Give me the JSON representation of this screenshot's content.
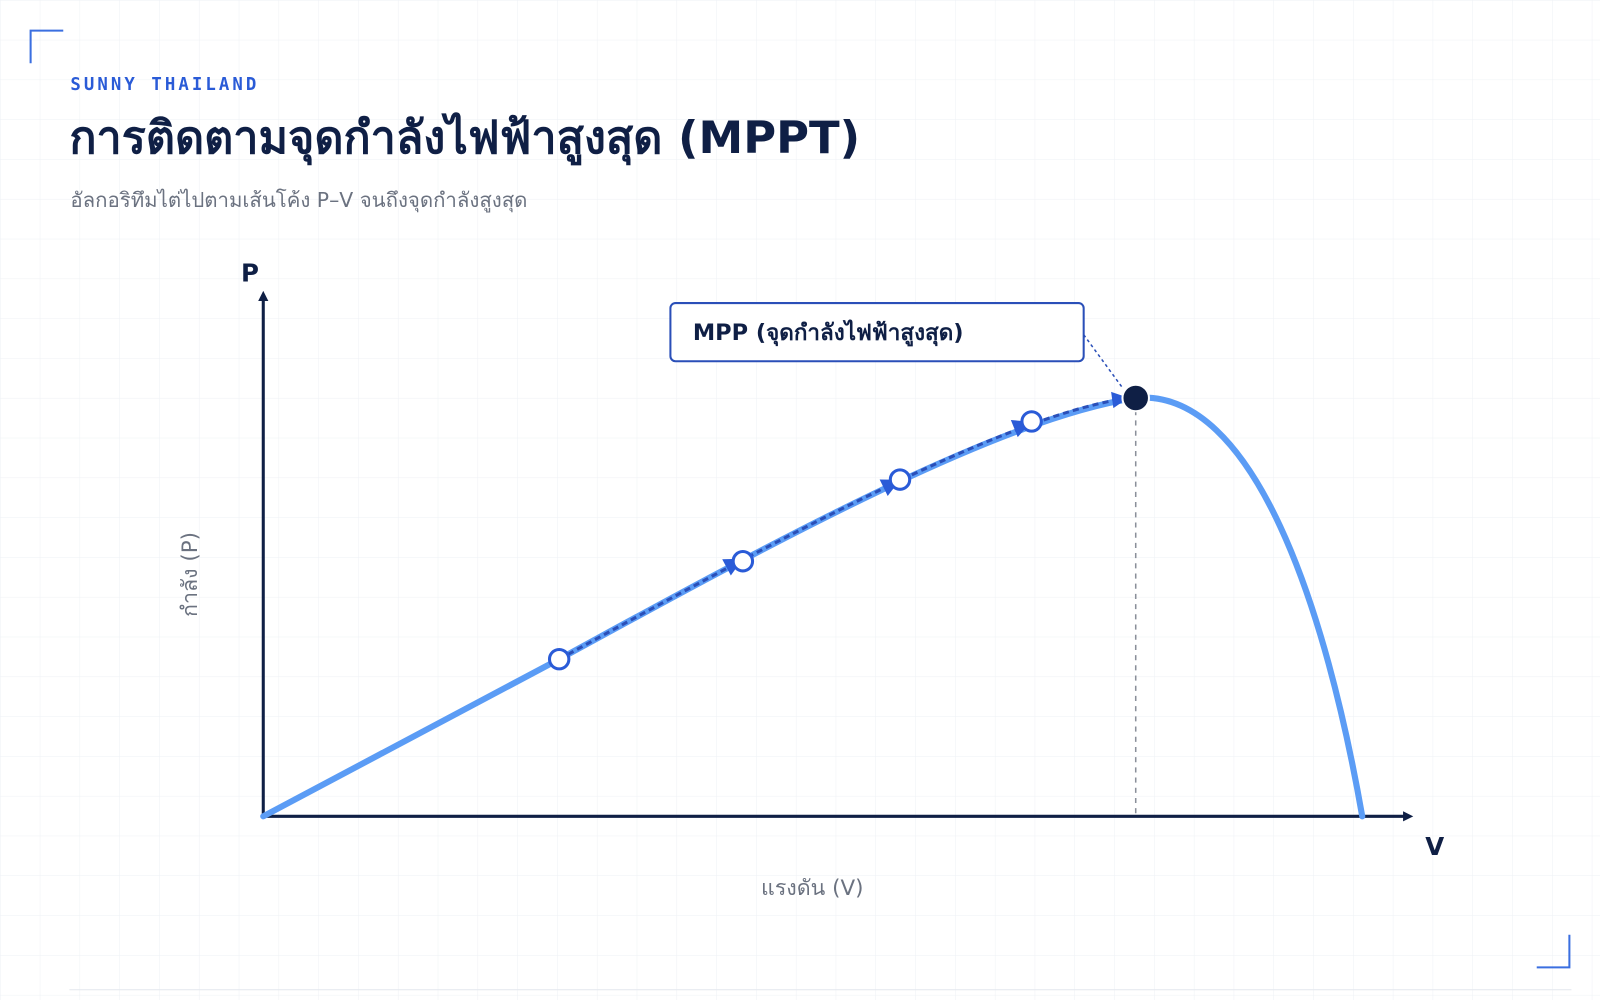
{
  "header": {
    "brand": "SUNNY THAILAND",
    "title": "การติดตามจุดกำลังไฟฟ้าสูงสุด (MPPT)",
    "subtitle": "อัลกอริทึมไต่ไปตามเส้นโค้ง P–V จนถึงจุดกำลังสูงสุด"
  },
  "diagram": {
    "y_axis_letter": "P",
    "x_axis_letter": "V",
    "y_axis_label": "กำลัง (P)",
    "x_axis_label": "แรงดัน (V)",
    "callout": "MPP (จุดกำลังไฟฟ้าสูงสุด)"
  }
}
